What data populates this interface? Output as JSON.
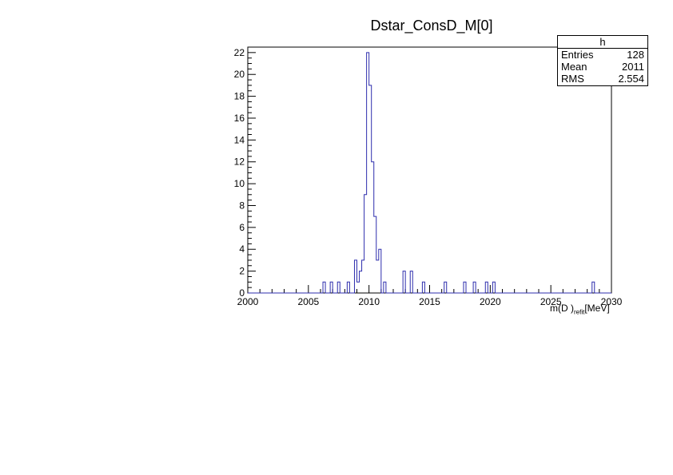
{
  "chart_data": {
    "type": "bar",
    "title": "Dstar_ConsD_M[0]",
    "xlabel": "m(D )_refit [MeV]",
    "xlabel_main": "m(D )",
    "xlabel_sub": "refit",
    "xlabel_unit": "[MeV]",
    "ylabel": "",
    "xlim": [
      2000,
      2030
    ],
    "ylim": [
      0,
      22.5
    ],
    "x_ticks": [
      2000,
      2005,
      2010,
      2015,
      2020,
      2025,
      2030
    ],
    "y_ticks": [
      0,
      2,
      4,
      6,
      8,
      10,
      12,
      14,
      16,
      18,
      20,
      22
    ],
    "bin_width": 0.2,
    "bins": [
      {
        "x": 2006.2,
        "y": 1
      },
      {
        "x": 2006.8,
        "y": 1
      },
      {
        "x": 2007.4,
        "y": 1
      },
      {
        "x": 2008.2,
        "y": 1
      },
      {
        "x": 2008.8,
        "y": 3
      },
      {
        "x": 2009.0,
        "y": 1
      },
      {
        "x": 2009.2,
        "y": 2
      },
      {
        "x": 2009.4,
        "y": 3
      },
      {
        "x": 2009.6,
        "y": 9
      },
      {
        "x": 2009.8,
        "y": 22
      },
      {
        "x": 2010.0,
        "y": 19
      },
      {
        "x": 2010.2,
        "y": 12
      },
      {
        "x": 2010.4,
        "y": 7
      },
      {
        "x": 2010.6,
        "y": 3
      },
      {
        "x": 2010.8,
        "y": 4
      },
      {
        "x": 2011.2,
        "y": 1
      },
      {
        "x": 2012.8,
        "y": 2
      },
      {
        "x": 2013.4,
        "y": 2
      },
      {
        "x": 2014.4,
        "y": 1
      },
      {
        "x": 2016.2,
        "y": 1
      },
      {
        "x": 2017.8,
        "y": 1
      },
      {
        "x": 2018.6,
        "y": 1
      },
      {
        "x": 2019.6,
        "y": 1
      },
      {
        "x": 2020.2,
        "y": 1
      },
      {
        "x": 2028.4,
        "y": 1
      }
    ],
    "line_color": "#2d2dad",
    "grid": false
  },
  "stats": {
    "name": "h",
    "entries_label": "Entries",
    "entries_value": "128",
    "mean_label": "Mean",
    "mean_value": "2011",
    "rms_label": "RMS",
    "rms_value": "2.554"
  }
}
